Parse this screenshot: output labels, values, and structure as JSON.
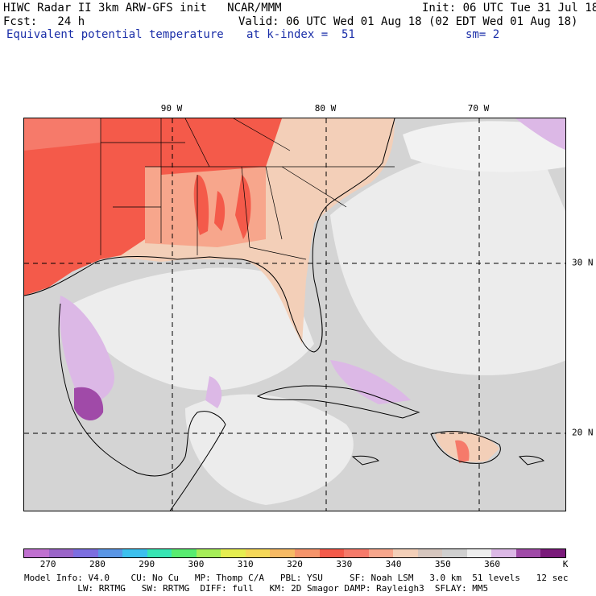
{
  "header": {
    "line1_left": "HIWC Radar II 3km ARW-GFS init   NCAR/MMM",
    "line1_right": "Init: 06 UTC Tue 31 Jul 18",
    "line2_left": "Fcst:   24 h",
    "line2_right": "Valid: 06 UTC Wed 01 Aug 18 (02 EDT Wed 01 Aug 18)",
    "line3_left": "Equivalent potential temperature",
    "line3_mid": "at k-index =  51",
    "line3_right": "sm= 2"
  },
  "map": {
    "lon_labels": [
      "90 W",
      "80 W",
      "70 W"
    ],
    "lat_labels": [
      "30 N",
      "20 N"
    ]
  },
  "colorbar": {
    "colors": [
      "#c070d0",
      "#9a64c8",
      "#7c6ee0",
      "#5a96e6",
      "#3cc0ee",
      "#38e6b4",
      "#58ec70",
      "#a6ee58",
      "#e6ee50",
      "#f6d858",
      "#f7ba64",
      "#f6946a",
      "#f45a4a",
      "#f67a6a",
      "#f7a68c",
      "#f3cfb8",
      "#d6c6be",
      "#cfcfcf",
      "#eeeeee",
      "#dcb8e6",
      "#a04aa8",
      "#7a1a7a"
    ],
    "labels": [
      "270",
      "280",
      "290",
      "300",
      "310",
      "320",
      "330",
      "340",
      "350",
      "360"
    ],
    "unit": "K"
  },
  "footer": {
    "line1": "Model Info: V4.0    CU: No Cu   MP: Thomp C/A   PBL: YSU     SF: Noah LSM   3.0 km  51 levels   12 sec",
    "line2": "          LW: RRTMG   SW: RRTMG  DIFF: full   KM: 2D Smagor DAMP: Rayleigh3  SFLAY: MM5"
  }
}
